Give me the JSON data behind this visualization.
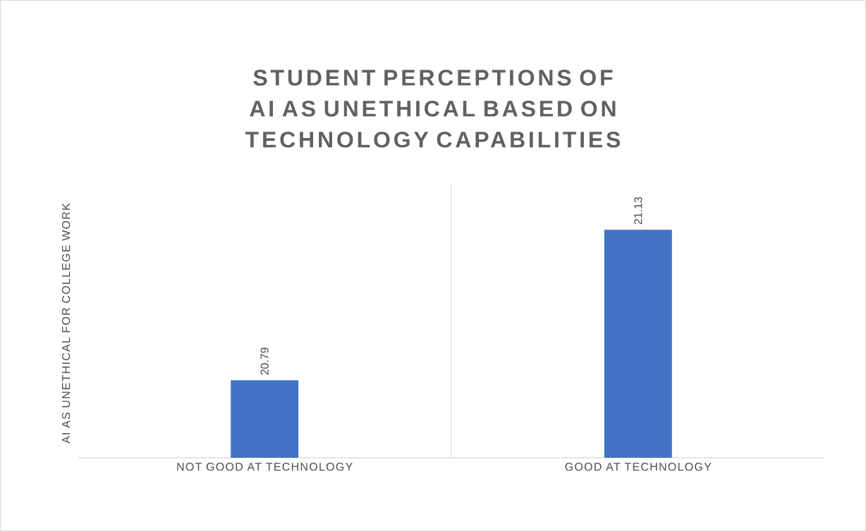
{
  "chart_data": {
    "type": "bar",
    "title": "STUDENT PERCEPTIONS OF AI AS UNETHICAL BASED ON TECHNOLOGY CAPABILITIES",
    "ylabel": "AI AS UNETHICAL FOR COLLEGE WORK",
    "categories": [
      "NOT GOOD AT TECHNOLOGY",
      "GOOD AT TECHNOLOGY"
    ],
    "values": [
      20.79,
      21.13
    ],
    "color": "#4472c4",
    "data_labels": true,
    "ylim": [
      20.615,
      21.235
    ],
    "grid": "x"
  }
}
